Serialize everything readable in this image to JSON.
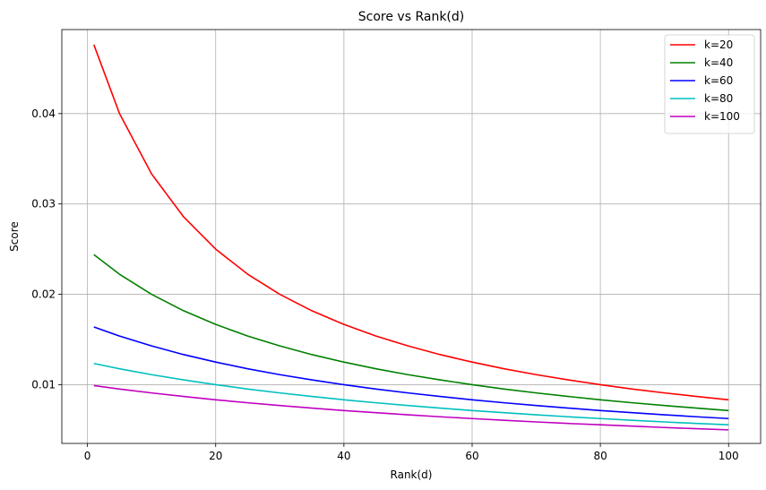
{
  "chart_data": {
    "type": "line",
    "title": "Score vs Rank(d)",
    "xlabel": "Rank(d)",
    "ylabel": "Score",
    "xlim": [
      -4.0,
      105.0
    ],
    "ylim": [
      0.0035,
      0.0493
    ],
    "xticks": [
      0,
      20,
      40,
      60,
      80,
      100
    ],
    "xtick_labels": [
      "0",
      "20",
      "40",
      "60",
      "80",
      "100"
    ],
    "yticks": [
      0.01,
      0.02,
      0.03,
      0.04
    ],
    "ytick_labels": [
      "0.01",
      "0.02",
      "0.03",
      "0.04"
    ],
    "grid": true,
    "legend_position": "top-right",
    "x": [
      1,
      5,
      10,
      15,
      20,
      25,
      30,
      35,
      40,
      45,
      50,
      55,
      60,
      65,
      70,
      75,
      80,
      85,
      90,
      95,
      100
    ],
    "series": [
      {
        "name": "k=20",
        "color": "#ff0000",
        "values": [
          0.04762,
          0.04,
          0.03333,
          0.02857,
          0.025,
          0.02222,
          0.02,
          0.01818,
          0.01667,
          0.01538,
          0.01429,
          0.01333,
          0.0125,
          0.01176,
          0.01111,
          0.01053,
          0.01,
          0.00952,
          0.00909,
          0.0087,
          0.00833
        ]
      },
      {
        "name": "k=40",
        "color": "#008000",
        "values": [
          0.02439,
          0.02222,
          0.02,
          0.01818,
          0.01667,
          0.01538,
          0.01429,
          0.01333,
          0.0125,
          0.01176,
          0.01111,
          0.01053,
          0.01,
          0.00952,
          0.00909,
          0.0087,
          0.00833,
          0.008,
          0.00769,
          0.00741,
          0.00714
        ]
      },
      {
        "name": "k=60",
        "color": "#0000ff",
        "values": [
          0.01639,
          0.01538,
          0.01429,
          0.01333,
          0.0125,
          0.01176,
          0.01111,
          0.01053,
          0.01,
          0.00952,
          0.00909,
          0.0087,
          0.00833,
          0.008,
          0.00769,
          0.00741,
          0.00714,
          0.0069,
          0.00667,
          0.00645,
          0.00625
        ]
      },
      {
        "name": "k=80",
        "color": "#00bfbf",
        "values": [
          0.01235,
          0.01176,
          0.01111,
          0.01053,
          0.01,
          0.00952,
          0.00909,
          0.0087,
          0.00833,
          0.008,
          0.00769,
          0.00741,
          0.00714,
          0.0069,
          0.00667,
          0.00645,
          0.00625,
          0.00606,
          0.00588,
          0.00571,
          0.00556
        ]
      },
      {
        "name": "k=100",
        "color": "#bf00bf",
        "values": [
          0.0099,
          0.00952,
          0.00909,
          0.0087,
          0.00833,
          0.008,
          0.00769,
          0.00741,
          0.00714,
          0.0069,
          0.00667,
          0.00645,
          0.00625,
          0.00606,
          0.00588,
          0.00571,
          0.00556,
          0.00541,
          0.00526,
          0.00513,
          0.005
        ]
      }
    ]
  }
}
